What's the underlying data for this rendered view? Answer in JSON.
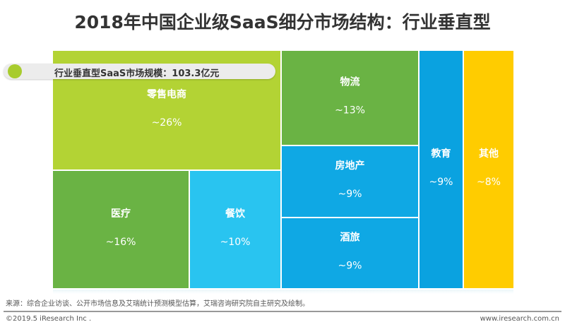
{
  "chart_data": {
    "type": "treemap",
    "title": "2018年中国企业级SaaS细分市场结构：行业垂直型",
    "annotation": "行业垂直型SaaS市场规模：103.3亿元",
    "cells": [
      {
        "label": "零售电商",
        "value": 26,
        "value_label": "~26%",
        "color": "#b3d334"
      },
      {
        "label": "医疗",
        "value": 16,
        "value_label": "~16%",
        "color": "#6ab344"
      },
      {
        "label": "餐饮",
        "value": 10,
        "value_label": "~10%",
        "color": "#29c4f0"
      },
      {
        "label": "物流",
        "value": 13,
        "value_label": "~13%",
        "color": "#6ab344"
      },
      {
        "label": "房地产",
        "value": 9,
        "value_label": "~9%",
        "color": "#0fa8e4"
      },
      {
        "label": "酒旅",
        "value": 9,
        "value_label": "~9%",
        "color": "#0fa8e4"
      },
      {
        "label": "教育",
        "value": 9,
        "value_label": "~9%",
        "color": "#0aa2e0"
      },
      {
        "label": "其他",
        "value": 8,
        "value_label": "~8%",
        "color": "#ffcc00"
      }
    ]
  },
  "footer": {
    "source": "来源：综合企业访谈、公开市场信息及艾瑞统计预测模型估算，艾瑞咨询研究院自主研究及绘制。",
    "copyright": "©2019.5 iResearch Inc .",
    "website": "www.iresearch.com.cn"
  }
}
